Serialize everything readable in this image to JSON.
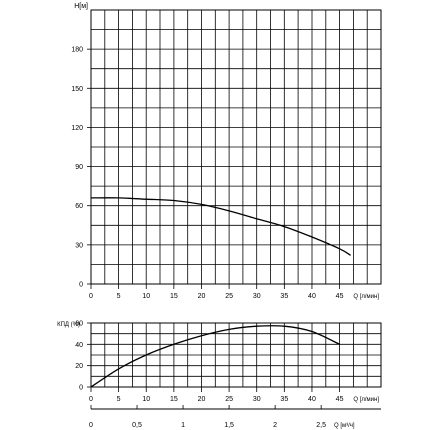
{
  "chart_data": [
    {
      "type": "line",
      "ylabel": "H[м]",
      "xlabel": "Q [л/мин]",
      "xlim": [
        0,
        52.5
      ],
      "ylim": [
        0,
        210
      ],
      "x_ticks": [
        "0",
        "5",
        "10",
        "15",
        "20",
        "25",
        "30",
        "35",
        "40",
        "45"
      ],
      "y_ticks": [
        "0",
        "30",
        "60",
        "90",
        "120",
        "150",
        "180"
      ],
      "grid": true,
      "series": [
        {
          "x": [
            0,
            5,
            10,
            15,
            20,
            25,
            30,
            35,
            40,
            45,
            47
          ],
          "y": [
            66,
            66,
            65,
            64,
            61,
            56,
            50,
            44,
            36,
            27,
            22
          ]
        }
      ]
    },
    {
      "type": "line",
      "ylabel": "КПД (%)",
      "xlabel": "Q [л/мин]",
      "xlim": [
        0,
        52.5
      ],
      "ylim": [
        0,
        60
      ],
      "x_ticks": [
        "0",
        "5",
        "10",
        "15",
        "20",
        "25",
        "30",
        "35",
        "40",
        "45"
      ],
      "y_ticks": [
        "0",
        "20",
        "40",
        "60"
      ],
      "grid": true,
      "series": [
        {
          "x": [
            0,
            5,
            10,
            15,
            20,
            25,
            30,
            35,
            40,
            45
          ],
          "y": [
            0,
            17,
            30,
            40,
            48,
            54,
            57,
            57,
            52,
            40
          ]
        }
      ]
    },
    {
      "type": "axis",
      "xlabel": "Q [м³/ч]",
      "xlim": [
        0,
        3.15
      ],
      "x_ticks": [
        "0",
        "0,5",
        "1",
        "1,5",
        "2",
        "2,5"
      ]
    }
  ]
}
